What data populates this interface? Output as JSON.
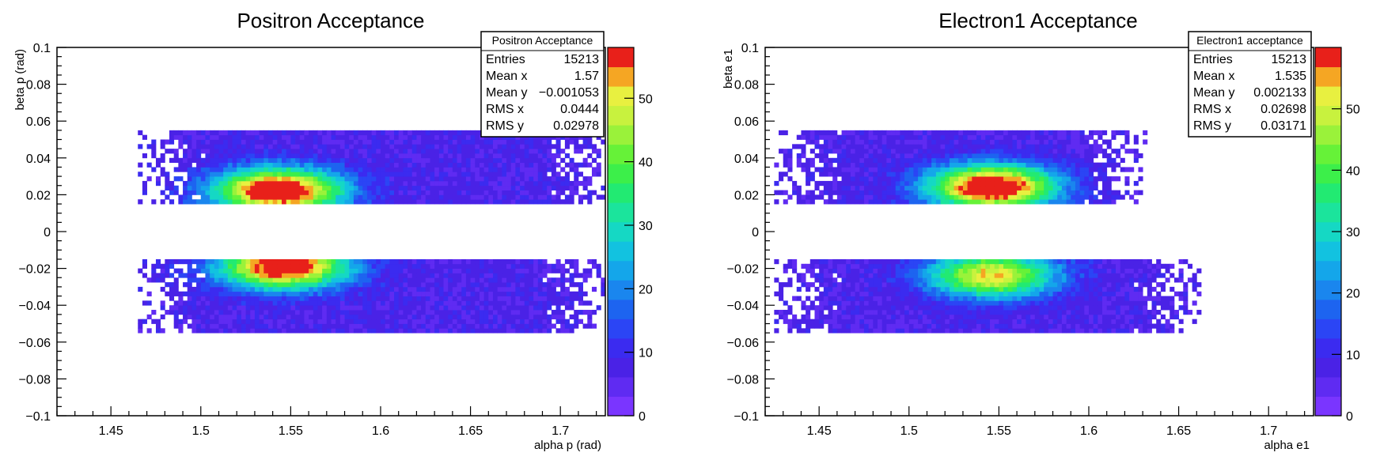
{
  "chart_data": [
    {
      "type": "heatmap",
      "title": "Positron Acceptance",
      "xlabel": "alpha p (rad)",
      "ylabel": "beta p (rad)",
      "xlim": [
        1.42,
        1.725
      ],
      "ylim": [
        -0.1,
        0.1
      ],
      "x_ticks": [
        "1.45",
        "1.5",
        "1.55",
        "1.6",
        "1.65",
        "1.7"
      ],
      "y_ticks": [
        "0.1",
        "0.08",
        "0.06",
        "0.04",
        "0.02",
        "0",
        "−0.02",
        "−0.04",
        "−0.06",
        "−0.08",
        "−0.1"
      ],
      "z_ticks": [
        "0",
        "10",
        "20",
        "30",
        "40",
        "50"
      ],
      "zmax": 58,
      "stats": {
        "header": "Positron Acceptance",
        "rows": [
          {
            "label": "Entries",
            "value": "15213"
          },
          {
            "label": "Mean x",
            "value": "1.57"
          },
          {
            "label": "Mean y",
            "value": "−0.001053"
          },
          {
            "label": "RMS x",
            "value": "0.0444"
          },
          {
            "label": "RMS y",
            "value": "0.02978"
          }
        ]
      },
      "bands": [
        {
          "xmin": 1.465,
          "xmax": 1.725,
          "ymin": 0.015,
          "ymax": 0.055,
          "hot_x": 1.542,
          "hot_y": 0.021,
          "peak": 58
        },
        {
          "xmin": 1.465,
          "xmax": 1.725,
          "ymin": -0.055,
          "ymax": -0.015,
          "hot_x": 1.545,
          "hot_y": -0.02,
          "peak": 55
        }
      ]
    },
    {
      "type": "heatmap",
      "title": "Electron1 Acceptance",
      "xlabel": "alpha e1",
      "ylabel": "beta e1",
      "xlim": [
        1.42,
        1.725
      ],
      "ylim": [
        -0.1,
        0.1
      ],
      "x_ticks": [
        "1.45",
        "1.5",
        "1.55",
        "1.6",
        "1.65",
        "1.7"
      ],
      "y_ticks": [
        "0.1",
        "0.08",
        "0.06",
        "0.04",
        "0.02",
        "0",
        "−0.02",
        "−0.04",
        "−0.06",
        "−0.08",
        "−0.1"
      ],
      "z_ticks": [
        "0",
        "10",
        "20",
        "30",
        "40",
        "50"
      ],
      "zmax": 60,
      "stats": {
        "header": "Electron1 acceptance",
        "rows": [
          {
            "label": "Entries",
            "value": "15213"
          },
          {
            "label": "Mean x",
            "value": "1.535"
          },
          {
            "label": "Mean y",
            "value": "0.002133"
          },
          {
            "label": "RMS x",
            "value": "0.02698"
          },
          {
            "label": "RMS y",
            "value": "0.03171"
          }
        ]
      },
      "bands": [
        {
          "xmin": 1.425,
          "xmax": 1.63,
          "ymin": 0.015,
          "ymax": 0.055,
          "hot_x": 1.545,
          "hot_y": 0.023,
          "peak": 60
        },
        {
          "xmin": 1.425,
          "xmax": 1.66,
          "ymin": -0.055,
          "ymax": -0.015,
          "hot_x": 1.545,
          "hot_y": -0.025,
          "peak": 45
        }
      ]
    }
  ]
}
